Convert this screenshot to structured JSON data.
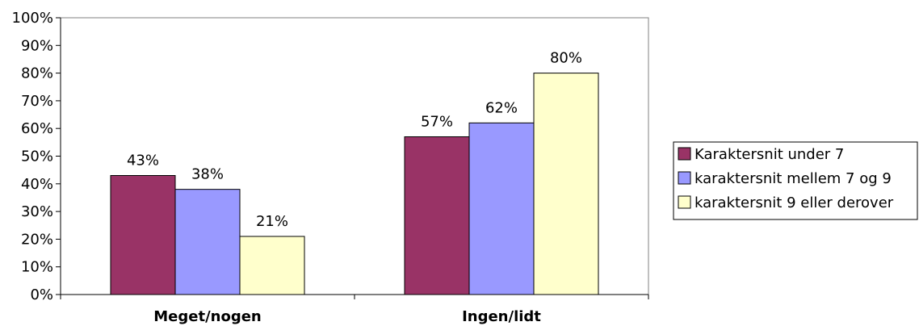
{
  "chart_data": {
    "type": "bar",
    "categories": [
      "Meget/nogen",
      "Ingen/lidt"
    ],
    "series": [
      {
        "name": "Karaktersnit under 7",
        "values": [
          43,
          57
        ],
        "color": "#993366"
      },
      {
        "name": "karaktersnit mellem 7 og 9",
        "values": [
          38,
          62
        ],
        "color": "#9999FF"
      },
      {
        "name": "karaktersnit 9 eller derover",
        "values": [
          21,
          80
        ],
        "color": "#FFFFCC"
      }
    ],
    "data_labels": [
      [
        "43%",
        "57%"
      ],
      [
        "38%",
        "62%"
      ],
      [
        "21%",
        "80%"
      ]
    ],
    "ylim": [
      0,
      100
    ],
    "yticks": [
      "0%",
      "10%",
      "20%",
      "30%",
      "40%",
      "50%",
      "60%",
      "70%",
      "80%",
      "90%",
      "100%"
    ],
    "legend_position": "right",
    "grid": false,
    "plot_border_color": "#808080",
    "bar_border_color": "#000000"
  }
}
